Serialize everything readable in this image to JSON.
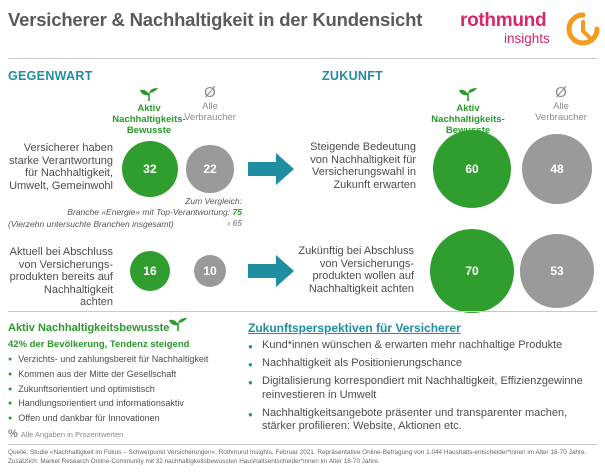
{
  "title": "Versicherer & Nachhaltigkeit in der Kundensicht",
  "logo": {
    "brand": "rothmund",
    "sub": "insights",
    "accent": "#d7266d"
  },
  "colors": {
    "green": "#2f9e2f",
    "grey": "#9a9a9a",
    "teal": "#1f8ea0"
  },
  "icons": {
    "aktiv": "sprout-leaf-icon",
    "alle": "empty-set-icon",
    "percent": "percent-icon"
  },
  "sections": {
    "gegenwart": "GEGENWART",
    "zukunft": "ZUKUNFT"
  },
  "legend": {
    "aktiv": "Aktiv Nachhaltigkeits-Bewusste",
    "alle_symbol": "Ø",
    "alle": "Alle Verbraucher"
  },
  "gegenwart_rows": [
    "Versicherer haben starke Verantwortung für Nachhaltigkeit, Umwelt, Gemeinwohl",
    "Aktuell bei Abschluss von Versicherungs-produkten bereits auf Nachhaltigkeit achten"
  ],
  "zukunft_rows": [
    "Steigende Bedeutung von Nachhaltigkeit für Versicherungswahl in Zukunft erwarten",
    "Zukünftig bei Abschluss von Versicherungs-produkten wollen auf Nachhaltigkeit achten"
  ],
  "compare": {
    "line1": "Zum Vergleich:",
    "line2_prefix": "Branche «Energie» mit Top-Verantwortung:",
    "value_green": "75",
    "separator": "›",
    "value_grey": "65",
    "line3": "(Vierzehn untersuchte Branchen insgesamt)"
  },
  "chart_data": {
    "type": "bubble",
    "unit": "%",
    "series": [
      {
        "name": "Aktiv Nachhaltigkeits-Bewusste",
        "color": "#2f9e2f"
      },
      {
        "name": "Alle Verbraucher",
        "color": "#9a9a9a"
      }
    ],
    "panels": [
      {
        "name": "GEGENWART",
        "rows": [
          {
            "label": "Versicherer haben starke Verantwortung für Nachhaltigkeit, Umwelt, Gemeinwohl",
            "values": [
              32,
              22
            ]
          },
          {
            "label": "Aktuell bei Abschluss von Versicherungs-produkten bereits auf Nachhaltigkeit achten",
            "values": [
              16,
              10
            ]
          }
        ]
      },
      {
        "name": "ZUKUNFT",
        "rows": [
          {
            "label": "Steigende Bedeutung von Nachhaltigkeit für Versicherungswahl in Zukunft erwarten",
            "values": [
              60,
              48
            ]
          },
          {
            "label": "Zukünftig bei Abschluss von Versicherungs-produkten wollen auf Nachhaltigkeit achten",
            "values": [
              70,
              53
            ]
          }
        ]
      }
    ]
  },
  "profile": {
    "title": "Aktiv Nachhaltigkeitsbewusste",
    "subtitle": "42% der Bevölkerung, Tendenz steigend",
    "items": [
      "Verzichts- und zahlungsbereit für Nachhaltigkeit",
      "Kommen aus der Mitte der Gesellschaft",
      "Zukunftsorientiert und optimistisch",
      "Handlungsorientiert und informationsaktiv",
      "Offen und dankbar für Innovationen"
    ],
    "note_symbol": "%",
    "note": "Alle Angaben in Prozentwerten"
  },
  "perspectives": {
    "title": "Zukunftsperspektiven für Versicherer",
    "items": [
      "Kund*innen wünschen & erwarten mehr nachhaltige Produkte",
      "Nachhaltigkeit als Positionierungschance",
      "Digitalisierung korrespondiert mit Nachhaltigkeit, Effizienzgewinne reinvestieren in Umwelt",
      "Nachhaltigkeitsangebote präsenter und transparenter machen, stärker profilieren: Website, Aktionen etc."
    ]
  },
  "source": "Quelle: Studie «Nachhaltigkeit im Fokus – Schwerpunkt Versicherungen», Rothmund Insights, Februar 2021. Repräsentative Online-Befragung von 1.044 Haushalts-entscheider*innen im Alter 18-70 Jahre. Zusätzlich: Market Research Online-Community mit 32 nachhaltigkeitsbewussten Haushaltsentscheider*innen im Alter 18-70 Jahre."
}
